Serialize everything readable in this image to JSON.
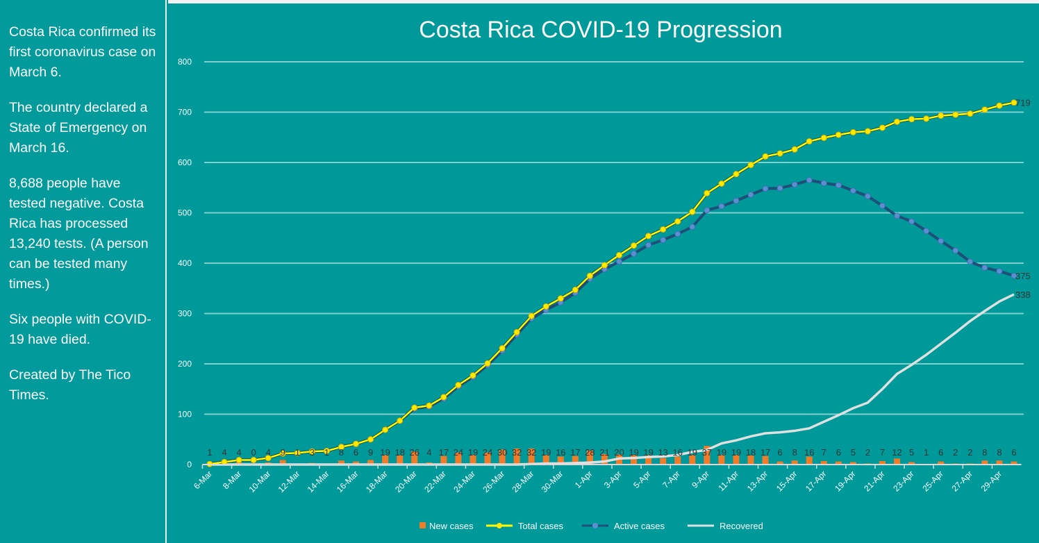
{
  "sidebar": {
    "paragraphs": [
      "Costa Rica confirmed its first coronavirus case on March 6.",
      "The country declared a State of Emergency on March 16.",
      "8,688 people have tested negative. Costa Rica has processed 13,240 tests. (A person can be tested many times.)",
      "Six people with COVID-19 have died.",
      "Created by The Tico Times."
    ]
  },
  "chart_data": {
    "type": "line",
    "title": "Costa Rica COVID-19 Progression",
    "ylim": [
      0,
      800
    ],
    "yticks": [
      0,
      100,
      200,
      300,
      400,
      500,
      600,
      700,
      800
    ],
    "grid": true,
    "legend_placement": "bottom",
    "x": [
      "6-Mar",
      "7-Mar",
      "8-Mar",
      "9-Mar",
      "10-Mar",
      "11-Mar",
      "12-Mar",
      "13-Mar",
      "14-Mar",
      "15-Mar",
      "16-Mar",
      "17-Mar",
      "18-Mar",
      "19-Mar",
      "20-Mar",
      "21-Mar",
      "22-Mar",
      "23-Mar",
      "24-Mar",
      "25-Mar",
      "26-Mar",
      "27-Mar",
      "28-Mar",
      "29-Mar",
      "30-Mar",
      "31-Mar",
      "1-Apr",
      "2-Apr",
      "3-Apr",
      "4-Apr",
      "5-Apr",
      "6-Apr",
      "7-Apr",
      "8-Apr",
      "9-Apr",
      "10-Apr",
      "11-Apr",
      "12-Apr",
      "13-Apr",
      "14-Apr",
      "15-Apr",
      "16-Apr",
      "17-Apr",
      "18-Apr",
      "19-Apr",
      "20-Apr",
      "21-Apr",
      "22-Apr",
      "23-Apr",
      "24-Apr",
      "25-Apr",
      "26-Apr",
      "27-Apr",
      "28-Apr",
      "29-Apr",
      "30-Apr"
    ],
    "series": [
      {
        "name": "New cases",
        "type": "bar",
        "color": "#f07c2a",
        "values": [
          1,
          4,
          4,
          0,
          4,
          9,
          1,
          3,
          1,
          8,
          6,
          9,
          19,
          18,
          26,
          4,
          17,
          24,
          19,
          24,
          30,
          32,
          32,
          19,
          16,
          17,
          28,
          21,
          20,
          19,
          19,
          13,
          16,
          19,
          37,
          19,
          19,
          18,
          17,
          6,
          8,
          16,
          7,
          6,
          5,
          2,
          7,
          12,
          5,
          1,
          6,
          2,
          2,
          8,
          8,
          6
        ]
      },
      {
        "name": "Total cases",
        "type": "line",
        "color": "#ffff00",
        "values": [
          1,
          5,
          9,
          9,
          13,
          22,
          23,
          26,
          27,
          35,
          41,
          50,
          69,
          87,
          113,
          117,
          134,
          158,
          177,
          201,
          231,
          263,
          295,
          314,
          330,
          347,
          375,
          396,
          416,
          435,
          454,
          467,
          483,
          502,
          539,
          558,
          577,
          595,
          612,
          618,
          626,
          642,
          649,
          655,
          660,
          662,
          669,
          681,
          686,
          687,
          693,
          695,
          697,
          705,
          713,
          719
        ],
        "end_label": "719"
      },
      {
        "name": "Active cases",
        "type": "line",
        "color": "#1f4e79",
        "values": [
          1,
          5,
          9,
          9,
          13,
          22,
          23,
          26,
          27,
          35,
          41,
          50,
          69,
          87,
          111,
          115,
          131,
          155,
          174,
          197,
          226,
          258,
          290,
          307,
          322,
          341,
          369,
          388,
          403,
          419,
          436,
          446,
          458,
          472,
          505,
          513,
          524,
          536,
          548,
          549,
          556,
          565,
          559,
          555,
          544,
          533,
          514,
          494,
          483,
          464,
          444,
          425,
          403,
          391,
          384,
          375
        ],
        "end_label": "375"
      },
      {
        "name": "Recovered",
        "type": "line",
        "color": "#e0e0e0",
        "values": [
          0,
          0,
          0,
          0,
          0,
          0,
          0,
          0,
          0,
          0,
          0,
          0,
          0,
          0,
          0,
          0,
          0,
          0,
          0,
          0,
          0,
          0,
          1,
          2,
          2,
          3,
          4,
          6,
          12,
          13,
          15,
          16,
          19,
          25,
          29,
          42,
          48,
          56,
          62,
          64,
          67,
          72,
          85,
          98,
          112,
          123,
          150,
          180,
          198,
          218,
          240,
          262,
          285,
          305,
          324,
          338
        ],
        "end_label": "338"
      }
    ]
  }
}
